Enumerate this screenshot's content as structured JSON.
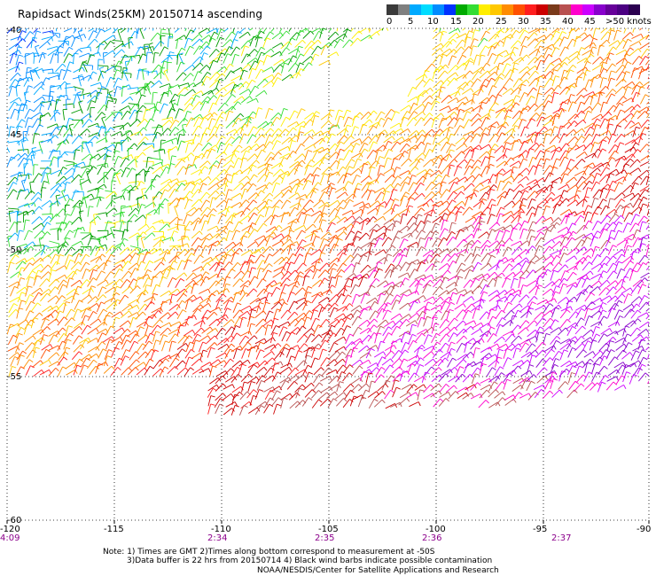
{
  "title": "Rapidsact Winds(25KM) 20150714 ascending",
  "legend": {
    "colors": [
      "#3a3a3a",
      "#7f7f7f",
      "#00aaff",
      "#00dcff",
      "#008cff",
      "#0032ff",
      "#00aa00",
      "#33dd33",
      "#ffee00",
      "#ffc800",
      "#ff8c00",
      "#ff5000",
      "#ff1e1e",
      "#cc0000",
      "#7a3a1a",
      "#b85050",
      "#ff00cc",
      "#cc00ff",
      "#8800cc",
      "#660099",
      "#4b0082",
      "#2b0050"
    ],
    "labels": [
      "0",
      "5",
      "10",
      "15",
      "20",
      "25",
      "30",
      "35",
      "40",
      "45",
      ">50 knots"
    ]
  },
  "axes": {
    "lat_labels": [
      "-40",
      "-45",
      "-50",
      "-55",
      "-60"
    ],
    "lon_labels": [
      "-120",
      "-115",
      "-110",
      "-105",
      "-100",
      "-95",
      "-90"
    ],
    "time_labels": [
      "4:09",
      "2:34",
      "2:35",
      "2:36",
      "2:37"
    ]
  },
  "notes": {
    "line1": "Note: 1) Times are GMT 2)Times along bottom correspond to measurement at -50S",
    "line2": "3)Data buffer is 22 hrs from 20150714 4) Black wind barbs indicate possible contamination",
    "line3": "NOAA/NESDIS/Center for Satellite Applications and Research"
  }
}
